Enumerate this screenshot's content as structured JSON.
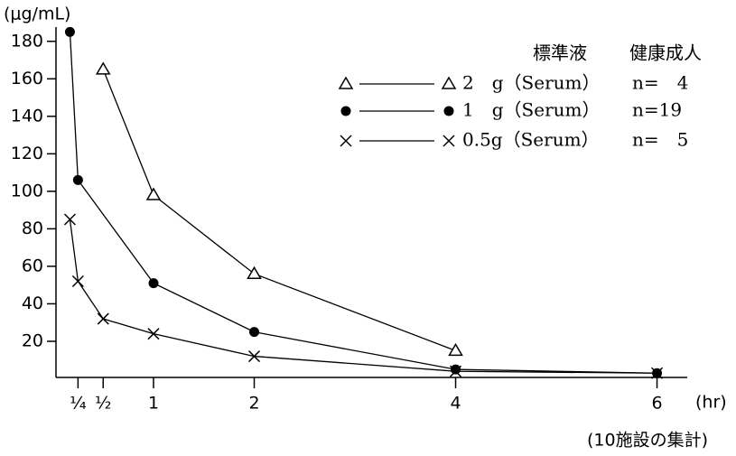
{
  "chart_data": {
    "type": "line",
    "y_label": "(μg/mL)",
    "x_unit": "(hr)",
    "note": "(10施設の集計)",
    "xlim": [
      0,
      6.3
    ],
    "ylim": [
      0,
      190
    ],
    "xticks": [
      {
        "value": 0.25,
        "label": "¼"
      },
      {
        "value": 0.5,
        "label": "½"
      },
      1,
      2,
      4,
      6
    ],
    "yticks": [
      20,
      40,
      60,
      80,
      100,
      120,
      140,
      160,
      180
    ],
    "legend_headers": [
      "標準液",
      "健康成人"
    ],
    "series": [
      {
        "name": "2　g（Serum）",
        "n_label": "n=　4",
        "marker": "triangle",
        "color": "#000000",
        "x": [
          0.5,
          1,
          2,
          4
        ],
        "values": [
          165,
          98,
          56,
          15
        ]
      },
      {
        "name": "1　g（Serum）",
        "n_label": "n=19",
        "marker": "circle",
        "color": "#000000",
        "x": [
          0.17,
          0.25,
          1,
          2,
          4,
          6
        ],
        "values": [
          185,
          106,
          51,
          25,
          5,
          3
        ]
      },
      {
        "name": "0.5g（Serum）",
        "n_label": "n=　5",
        "marker": "cross",
        "color": "#000000",
        "x": [
          0.17,
          0.25,
          0.5,
          1,
          2,
          4,
          6
        ],
        "values": [
          85,
          52,
          32,
          24,
          12,
          4,
          3
        ]
      }
    ]
  }
}
